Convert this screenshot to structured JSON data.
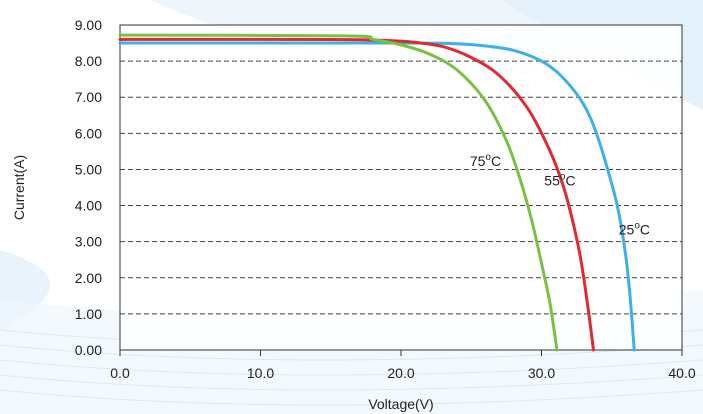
{
  "chart_data": {
    "type": "line",
    "xlabel": "Voltage(V)",
    "ylabel": "Current(A)",
    "xlim": [
      0,
      40
    ],
    "ylim": [
      0,
      9
    ],
    "x_ticks": [
      "0.0",
      "10.0",
      "20.0",
      "30.0",
      "40.0"
    ],
    "y_ticks": [
      "0.00",
      "1.00",
      "2.00",
      "3.00",
      "4.00",
      "5.00",
      "6.00",
      "7.00",
      "8.00",
      "9.00"
    ],
    "grid": "horizontal-dashed",
    "series": [
      {
        "name": "25°C",
        "color": "#3db0e6",
        "points": [
          [
            0,
            8.5
          ],
          [
            20,
            8.5
          ],
          [
            24,
            8.48
          ],
          [
            26,
            8.42
          ],
          [
            28,
            8.3
          ],
          [
            30,
            8.0
          ],
          [
            31.5,
            7.55
          ],
          [
            33,
            6.8
          ],
          [
            34,
            5.9
          ],
          [
            35,
            4.6
          ],
          [
            35.5,
            3.8
          ],
          [
            36,
            2.6
          ],
          [
            36.3,
            1.5
          ],
          [
            36.6,
            0
          ]
        ],
        "label": {
          "base": "25",
          "sup": "o",
          "rest": "C",
          "x": 35.5,
          "y": 3.2
        }
      },
      {
        "name": "55°C",
        "color": "#e02a2f",
        "points": [
          [
            0,
            8.6
          ],
          [
            15,
            8.6
          ],
          [
            19,
            8.57
          ],
          [
            21,
            8.52
          ],
          [
            23,
            8.4
          ],
          [
            25,
            8.1
          ],
          [
            27,
            7.6
          ],
          [
            29,
            6.7
          ],
          [
            30.5,
            5.6
          ],
          [
            31.5,
            4.6
          ],
          [
            32.2,
            3.6
          ],
          [
            32.8,
            2.5
          ],
          [
            33.3,
            1.2
          ],
          [
            33.7,
            0
          ]
        ],
        "label": {
          "base": "55",
          "sup": "o",
          "rest": "C",
          "x": 30.2,
          "y": 4.55
        }
      },
      {
        "name": "75°C",
        "color": "#7ac143",
        "points": [
          [
            0,
            8.72
          ],
          [
            16,
            8.7
          ],
          [
            18,
            8.6
          ],
          [
            20,
            8.45
          ],
          [
            22,
            8.2
          ],
          [
            24,
            7.75
          ],
          [
            26,
            6.9
          ],
          [
            27.5,
            5.8
          ],
          [
            28.5,
            4.7
          ],
          [
            29.3,
            3.6
          ],
          [
            30,
            2.4
          ],
          [
            30.6,
            1.3
          ],
          [
            31.1,
            0
          ]
        ],
        "label": {
          "base": "75",
          "sup": "o",
          "rest": "C",
          "x": 24.9,
          "y": 5.1
        }
      }
    ]
  }
}
